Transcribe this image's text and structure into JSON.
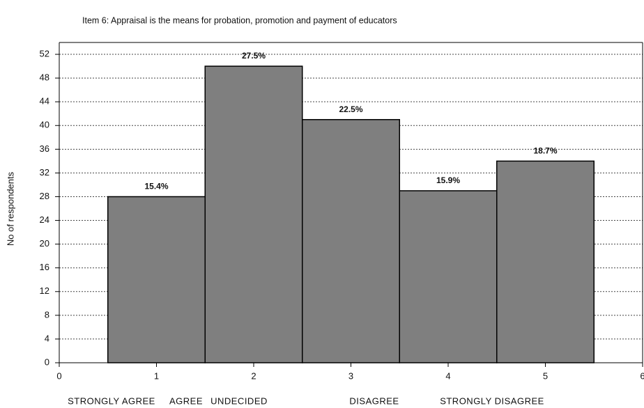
{
  "chart_data": {
    "type": "bar",
    "title": "Item 6: Appraisal is the means for probation, promotion and payment of educators",
    "ylabel": "No of respondents",
    "x": [
      1,
      2,
      3,
      4,
      5
    ],
    "values": [
      28,
      50,
      41,
      29,
      34
    ],
    "annotations": [
      "15.4%",
      "27.5%",
      "22.5%",
      "15.9%",
      "18.7%"
    ],
    "categories": [
      "STRONGLY AGREE",
      "AGREE",
      "UNDECIDED",
      "DISAGREE",
      "STRONGLY DISAGREE"
    ],
    "color": "#7f7f7f",
    "xlim": [
      0,
      6
    ],
    "xticks": [
      0,
      1,
      2,
      3,
      4,
      5,
      6
    ],
    "ylim": [
      0,
      54
    ],
    "yticks": [
      0,
      4,
      8,
      12,
      16,
      20,
      24,
      28,
      32,
      36,
      40,
      44,
      48,
      52
    ],
    "grid": true
  }
}
